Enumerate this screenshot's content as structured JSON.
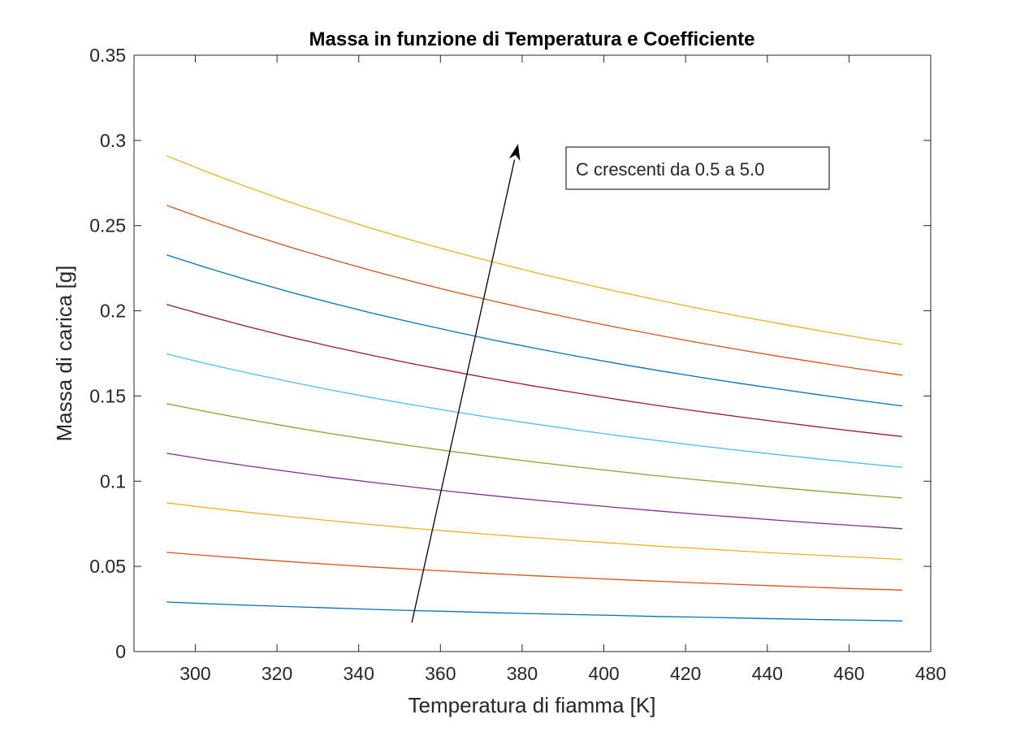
{
  "chart_data": {
    "type": "line",
    "title": "Massa in funzione di Temperatura e Coefficiente",
    "xlabel": "Temperatura di fiamma [K]",
    "ylabel": "Massa di carica [g]",
    "xlim": [
      285,
      480
    ],
    "ylim": [
      0,
      0.35
    ],
    "xticks": [
      300,
      320,
      340,
      360,
      380,
      400,
      420,
      440,
      460,
      480
    ],
    "yticks": [
      0,
      0.05,
      0.1,
      0.15,
      0.2,
      0.25,
      0.3,
      0.35
    ],
    "ytick_labels": [
      "0",
      "0.05",
      "0.1",
      "0.15",
      "0.2",
      "0.25",
      "0.3",
      "0.35"
    ],
    "grid": false,
    "x": [
      293,
      303,
      313,
      323,
      333,
      343,
      353,
      363,
      373,
      383,
      393,
      403,
      413,
      423,
      433,
      443,
      453,
      463,
      473
    ],
    "series": [
      {
        "color": "#0072BD",
        "values": [
          0.0291,
          0.0281,
          0.0272,
          0.0264,
          0.0256,
          0.0248,
          0.0241,
          0.0235,
          0.0228,
          0.0222,
          0.0217,
          0.0212,
          0.0206,
          0.0202,
          0.0197,
          0.0192,
          0.0188,
          0.0184,
          0.018
        ]
      },
      {
        "color": "#D95319",
        "values": [
          0.0582,
          0.0563,
          0.0545,
          0.0528,
          0.0512,
          0.0497,
          0.0483,
          0.047,
          0.0457,
          0.0445,
          0.0434,
          0.0423,
          0.0413,
          0.0403,
          0.0394,
          0.0385,
          0.0376,
          0.0368,
          0.0361
        ]
      },
      {
        "color": "#EDB120",
        "values": [
          0.0873,
          0.0844,
          0.0817,
          0.0792,
          0.0768,
          0.0746,
          0.0724,
          0.0705,
          0.0686,
          0.0668,
          0.0651,
          0.0635,
          0.0619,
          0.0605,
          0.0591,
          0.0577,
          0.0565,
          0.0553,
          0.0541
        ]
      },
      {
        "color": "#7E2F8E",
        "values": [
          0.1164,
          0.1125,
          0.1089,
          0.1056,
          0.1024,
          0.0994,
          0.0966,
          0.0939,
          0.0914,
          0.089,
          0.0868,
          0.0846,
          0.0826,
          0.0806,
          0.0788,
          0.077,
          0.0753,
          0.0737,
          0.0721
        ]
      },
      {
        "color": "#77AC30",
        "values": [
          0.1455,
          0.1407,
          0.1362,
          0.132,
          0.128,
          0.1243,
          0.1207,
          0.1174,
          0.1143,
          0.1113,
          0.1085,
          0.1058,
          0.1032,
          0.1008,
          0.0985,
          0.0962,
          0.0941,
          0.0921,
          0.0901
        ]
      },
      {
        "color": "#4DBEEE",
        "values": [
          0.1746,
          0.1688,
          0.1634,
          0.1584,
          0.1536,
          0.1491,
          0.1449,
          0.1409,
          0.1371,
          0.1336,
          0.1302,
          0.1269,
          0.1239,
          0.1209,
          0.1181,
          0.1155,
          0.1129,
          0.1105,
          0.1082
        ]
      },
      {
        "color": "#A2142F",
        "values": [
          0.2037,
          0.197,
          0.1906,
          0.1847,
          0.1792,
          0.174,
          0.169,
          0.1644,
          0.16,
          0.1558,
          0.1519,
          0.1481,
          0.1445,
          0.1411,
          0.1378,
          0.1347,
          0.1317,
          0.1289,
          0.1262
        ]
      },
      {
        "color": "#0072BD",
        "values": [
          0.2328,
          0.2251,
          0.2179,
          0.2111,
          0.2048,
          0.1988,
          0.1932,
          0.1879,
          0.1828,
          0.1781,
          0.1735,
          0.1692,
          0.1651,
          0.1612,
          0.1575,
          0.154,
          0.1506,
          0.1473,
          0.1442
        ]
      },
      {
        "color": "#D95319",
        "values": [
          0.2619,
          0.2533,
          0.2451,
          0.2375,
          0.2304,
          0.2237,
          0.2173,
          0.2113,
          0.2057,
          0.2003,
          0.1952,
          0.1904,
          0.1858,
          0.1814,
          0.1772,
          0.1732,
          0.1694,
          0.1657,
          0.1622
        ]
      },
      {
        "color": "#EDB120",
        "values": [
          0.291,
          0.2814,
          0.2724,
          0.2639,
          0.256,
          0.2485,
          0.2414,
          0.2348,
          0.2286,
          0.2226,
          0.2169,
          0.2115,
          0.2064,
          0.2015,
          0.1969,
          0.1925,
          0.1882,
          0.1841,
          0.1802
        ]
      }
    ],
    "annotation": {
      "text": "C crescenti da 0.5 a 5.0",
      "arrow": {
        "from": [
          353,
          0.017
        ],
        "to": [
          379,
          0.298
        ]
      }
    }
  }
}
